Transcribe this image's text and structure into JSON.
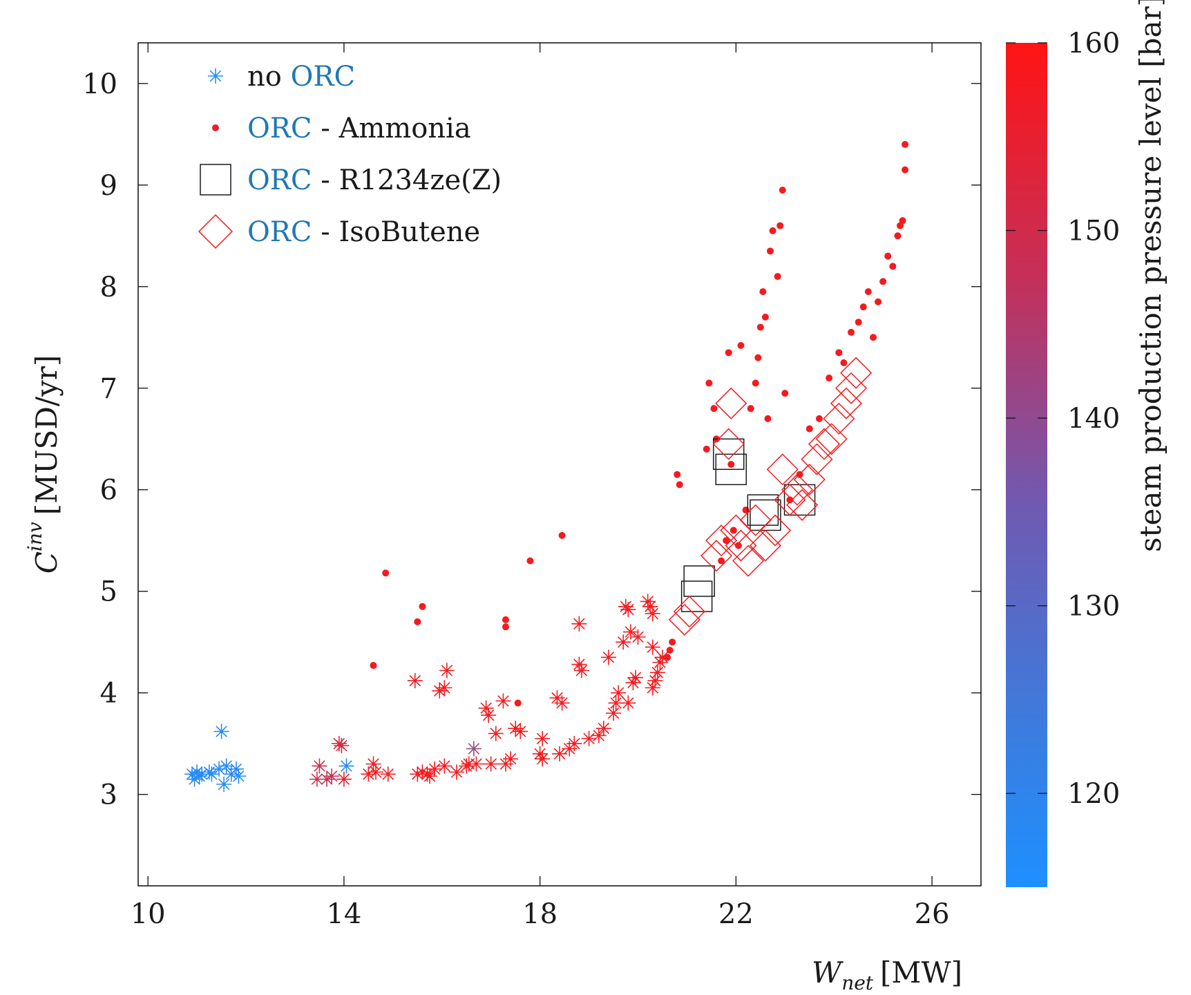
{
  "chart_data": {
    "type": "scatter",
    "xlabel_main": "W",
    "xlabel_sub": "net",
    "xlabel_unit": "[MW]",
    "ylabel_main": "C",
    "ylabel_sup": "inv",
    "ylabel_unit": "[MUSD/yr]",
    "xlim": [
      9.8,
      27.0
    ],
    "ylim": [
      2.1,
      10.4
    ],
    "x_ticks": [
      10,
      14,
      18,
      22,
      26
    ],
    "x_tick_labels": [
      "10",
      "14",
      "18",
      "22",
      "26"
    ],
    "y_ticks": [
      3,
      4,
      5,
      6,
      7,
      8,
      9,
      10
    ],
    "y_tick_labels": [
      "3",
      "4",
      "5",
      "6",
      "7",
      "8",
      "9",
      "10"
    ],
    "colorbar": {
      "label": "steam production pressure level [bar]",
      "range": [
        115,
        160
      ],
      "ticks": [
        120,
        130,
        140,
        150,
        160
      ],
      "tick_labels": [
        "120",
        "130",
        "140",
        "150",
        "160"
      ],
      "low_color": "#1e90ff",
      "high_color": "#ff1414"
    },
    "legend": [
      {
        "marker": "asterisk",
        "prefix": "no ",
        "orc": "ORC",
        "suffix": ""
      },
      {
        "marker": "dot",
        "prefix": "",
        "orc": "ORC",
        "suffix": " - Ammonia"
      },
      {
        "marker": "square",
        "prefix": "",
        "orc": "ORC",
        "suffix": " - R1234ze(Z)"
      },
      {
        "marker": "diamond",
        "prefix": "",
        "orc": "ORC",
        "suffix": " - IsoButene"
      }
    ],
    "series": [
      {
        "name": "no ORC",
        "marker": "asterisk",
        "points": [
          [
            10.9,
            3.2,
            117
          ],
          [
            10.95,
            3.15,
            117
          ],
          [
            11.0,
            3.22,
            117
          ],
          [
            11.05,
            3.18,
            117
          ],
          [
            11.1,
            3.2,
            117
          ],
          [
            11.25,
            3.22,
            117
          ],
          [
            11.3,
            3.2,
            117
          ],
          [
            11.45,
            3.25,
            117
          ],
          [
            11.5,
            3.62,
            117
          ],
          [
            11.55,
            3.1,
            117
          ],
          [
            11.6,
            3.28,
            117
          ],
          [
            11.7,
            3.2,
            117
          ],
          [
            11.8,
            3.25,
            117
          ],
          [
            11.85,
            3.18,
            117
          ],
          [
            14.05,
            3.28,
            117
          ],
          [
            13.45,
            3.15,
            148
          ],
          [
            13.5,
            3.28,
            150
          ],
          [
            13.65,
            3.15,
            148
          ],
          [
            13.75,
            3.18,
            148
          ],
          [
            13.9,
            3.5,
            152
          ],
          [
            13.95,
            3.48,
            152
          ],
          [
            14.0,
            3.15,
            155
          ],
          [
            14.5,
            3.2,
            158
          ],
          [
            14.6,
            3.3,
            158
          ],
          [
            14.65,
            3.22,
            158
          ],
          [
            14.9,
            3.2,
            158
          ],
          [
            15.45,
            4.12,
            158
          ],
          [
            15.5,
            3.2,
            158
          ],
          [
            15.6,
            3.22,
            158
          ],
          [
            15.7,
            3.2,
            158
          ],
          [
            15.75,
            3.18,
            158
          ],
          [
            15.85,
            3.25,
            158
          ],
          [
            15.95,
            4.02,
            158
          ],
          [
            16.05,
            4.05,
            158
          ],
          [
            16.1,
            4.22,
            158
          ],
          [
            16.05,
            3.28,
            158
          ],
          [
            16.3,
            3.22,
            158
          ],
          [
            16.5,
            3.28,
            158
          ],
          [
            16.55,
            3.3,
            158
          ],
          [
            16.65,
            3.45,
            140
          ],
          [
            16.7,
            3.3,
            158
          ],
          [
            16.9,
            3.85,
            158
          ],
          [
            16.95,
            3.78,
            158
          ],
          [
            17.0,
            3.3,
            158
          ],
          [
            17.1,
            3.6,
            158
          ],
          [
            17.25,
            3.92,
            158
          ],
          [
            17.3,
            3.3,
            158
          ],
          [
            17.4,
            3.35,
            158
          ],
          [
            17.5,
            3.65,
            158
          ],
          [
            17.6,
            3.62,
            158
          ],
          [
            18.0,
            3.4,
            158
          ],
          [
            18.05,
            3.35,
            158
          ],
          [
            18.05,
            3.55,
            158
          ],
          [
            18.35,
            3.95,
            158
          ],
          [
            18.4,
            3.4,
            158
          ],
          [
            18.45,
            3.9,
            158
          ],
          [
            18.6,
            3.45,
            158
          ],
          [
            18.7,
            3.5,
            158
          ],
          [
            18.8,
            4.28,
            158
          ],
          [
            18.85,
            4.22,
            158
          ],
          [
            18.8,
            4.68,
            158
          ],
          [
            19.0,
            3.55,
            158
          ],
          [
            19.2,
            3.58,
            158
          ],
          [
            19.3,
            3.65,
            158
          ],
          [
            19.4,
            4.35,
            158
          ],
          [
            19.5,
            3.8,
            158
          ],
          [
            19.55,
            3.9,
            158
          ],
          [
            19.6,
            4.0,
            158
          ],
          [
            19.7,
            4.5,
            158
          ],
          [
            19.75,
            4.85,
            158
          ],
          [
            19.8,
            4.82,
            158
          ],
          [
            19.85,
            4.6,
            158
          ],
          [
            19.8,
            3.9,
            158
          ],
          [
            19.9,
            4.1,
            158
          ],
          [
            19.95,
            4.15,
            158
          ],
          [
            20.0,
            4.55,
            158
          ],
          [
            20.2,
            4.9,
            158
          ],
          [
            20.25,
            4.85,
            158
          ],
          [
            20.3,
            4.78,
            158
          ],
          [
            20.3,
            4.45,
            158
          ],
          [
            20.3,
            4.05,
            158
          ],
          [
            20.35,
            4.12,
            158
          ],
          [
            20.4,
            4.2,
            158
          ],
          [
            20.45,
            4.3,
            158
          ],
          [
            20.5,
            4.35,
            158
          ]
        ]
      },
      {
        "name": "ORC - Ammonia",
        "marker": "dot",
        "points": [
          [
            14.6,
            4.27,
            158
          ],
          [
            14.85,
            5.18,
            158
          ],
          [
            15.5,
            4.7,
            158
          ],
          [
            15.6,
            4.85,
            158
          ],
          [
            17.3,
            4.72,
            158
          ],
          [
            17.3,
            4.65,
            158
          ],
          [
            17.55,
            3.9,
            158
          ],
          [
            17.8,
            5.3,
            158
          ],
          [
            18.45,
            5.55,
            158
          ],
          [
            20.6,
            4.35,
            158
          ],
          [
            20.65,
            4.42,
            158
          ],
          [
            20.7,
            4.5,
            158
          ],
          [
            20.8,
            6.15,
            158
          ],
          [
            20.85,
            6.05,
            158
          ],
          [
            21.4,
            6.4,
            158
          ],
          [
            21.45,
            7.05,
            158
          ],
          [
            21.55,
            6.8,
            158
          ],
          [
            21.6,
            6.5,
            158
          ],
          [
            21.7,
            5.3,
            158
          ],
          [
            21.8,
            5.5,
            158
          ],
          [
            21.85,
            7.35,
            158
          ],
          [
            21.9,
            6.25,
            158
          ],
          [
            21.95,
            5.6,
            158
          ],
          [
            22.05,
            5.45,
            158
          ],
          [
            22.1,
            7.42,
            158
          ],
          [
            22.2,
            5.8,
            158
          ],
          [
            22.3,
            6.8,
            158
          ],
          [
            22.4,
            7.05,
            158
          ],
          [
            22.45,
            7.3,
            158
          ],
          [
            22.5,
            7.6,
            158
          ],
          [
            22.55,
            7.95,
            158
          ],
          [
            22.6,
            7.7,
            158
          ],
          [
            22.65,
            6.7,
            158
          ],
          [
            22.7,
            8.35,
            158
          ],
          [
            22.75,
            8.55,
            158
          ],
          [
            22.85,
            8.1,
            158
          ],
          [
            22.9,
            8.6,
            158
          ],
          [
            22.95,
            8.95,
            158
          ],
          [
            23.0,
            6.95,
            158
          ],
          [
            23.1,
            5.9,
            158
          ],
          [
            23.3,
            6.15,
            158
          ],
          [
            23.5,
            6.6,
            158
          ],
          [
            23.7,
            6.7,
            158
          ],
          [
            23.9,
            7.1,
            158
          ],
          [
            24.1,
            7.35,
            158
          ],
          [
            24.2,
            7.25,
            158
          ],
          [
            24.35,
            7.55,
            158
          ],
          [
            24.5,
            7.65,
            158
          ],
          [
            24.6,
            7.8,
            158
          ],
          [
            24.7,
            7.95,
            158
          ],
          [
            24.8,
            7.5,
            158
          ],
          [
            24.9,
            7.85,
            158
          ],
          [
            25.0,
            8.05,
            158
          ],
          [
            25.1,
            8.3,
            158
          ],
          [
            25.2,
            8.2,
            158
          ],
          [
            25.3,
            8.5,
            158
          ],
          [
            25.35,
            8.6,
            158
          ],
          [
            25.4,
            8.65,
            158
          ],
          [
            25.45,
            9.15,
            158
          ],
          [
            25.45,
            9.4,
            158
          ]
        ]
      },
      {
        "name": "ORC - R1234ze(Z)",
        "marker": "square",
        "points": [
          [
            21.2,
            4.95,
            158
          ],
          [
            21.25,
            5.1,
            158
          ],
          [
            21.85,
            6.35,
            158
          ],
          [
            21.9,
            6.2,
            158
          ],
          [
            22.55,
            5.8,
            158
          ],
          [
            22.6,
            5.75,
            158
          ],
          [
            23.3,
            5.9,
            158
          ]
        ]
      },
      {
        "name": "ORC - IsoButene",
        "marker": "diamond",
        "points": [
          [
            20.95,
            4.72,
            158
          ],
          [
            21.05,
            4.8,
            158
          ],
          [
            21.6,
            5.35,
            158
          ],
          [
            21.7,
            5.5,
            158
          ],
          [
            21.85,
            6.45,
            158
          ],
          [
            21.9,
            6.85,
            158
          ],
          [
            22.0,
            5.6,
            158
          ],
          [
            22.1,
            5.45,
            158
          ],
          [
            22.25,
            5.3,
            158
          ],
          [
            22.4,
            5.7,
            158
          ],
          [
            22.6,
            5.45,
            158
          ],
          [
            22.8,
            5.6,
            158
          ],
          [
            22.95,
            6.2,
            158
          ],
          [
            23.1,
            5.9,
            158
          ],
          [
            23.25,
            6.0,
            158
          ],
          [
            23.35,
            5.85,
            158
          ],
          [
            23.5,
            6.1,
            158
          ],
          [
            23.65,
            6.3,
            158
          ],
          [
            23.8,
            6.45,
            158
          ],
          [
            23.95,
            6.5,
            158
          ],
          [
            24.1,
            6.7,
            158
          ],
          [
            24.25,
            6.85,
            158
          ],
          [
            24.35,
            7.0,
            158
          ],
          [
            24.45,
            7.15,
            158
          ]
        ]
      }
    ]
  }
}
